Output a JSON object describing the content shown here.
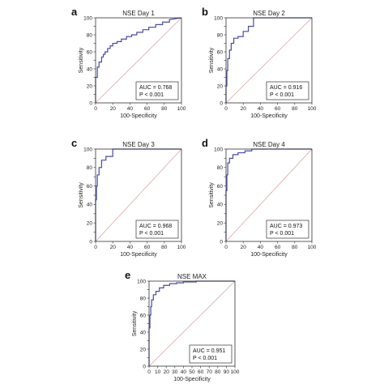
{
  "chart_data": [
    {
      "panel": "a",
      "type": "line",
      "title": "NSE Day 1",
      "xlabel": "100-Specificity",
      "ylabel": "Sensitivity",
      "xlim": [
        0,
        100
      ],
      "ylim": [
        0,
        100
      ],
      "xticks": [
        "0",
        "20",
        "40",
        "60",
        "80",
        "100"
      ],
      "yticks": [
        "0",
        "10",
        "20",
        "30",
        "40",
        "50",
        "60",
        "70",
        "80",
        "90",
        "100"
      ],
      "auc_text": "AUC = 0.768",
      "p_text": "P < 0.001",
      "roc_color": "#4a4aa8",
      "ref_color": "#d8a8a8",
      "x": [
        0,
        0,
        2,
        2,
        4,
        4,
        7,
        7,
        9,
        9,
        11,
        11,
        14,
        14,
        17,
        17,
        20,
        20,
        25,
        25,
        30,
        30,
        36,
        36,
        42,
        42,
        48,
        48,
        55,
        55,
        62,
        62,
        70,
        70,
        78,
        78,
        86,
        86,
        100
      ],
      "y": [
        0,
        30,
        30,
        42,
        42,
        48,
        48,
        54,
        54,
        57,
        57,
        60,
        60,
        64,
        64,
        67,
        67,
        70,
        70,
        72,
        72,
        75,
        75,
        78,
        78,
        80,
        80,
        83,
        83,
        86,
        86,
        89,
        89,
        92,
        92,
        95,
        95,
        98,
        100
      ]
    },
    {
      "panel": "b",
      "type": "line",
      "title": "NSE Day 2",
      "xlabel": "100-Specificity",
      "ylabel": "Sensitivity",
      "xlim": [
        0,
        100
      ],
      "ylim": [
        0,
        100
      ],
      "xticks": [
        "0",
        "20",
        "40",
        "60",
        "80",
        "100"
      ],
      "yticks": [
        "0",
        "10",
        "20",
        "30",
        "40",
        "50",
        "60",
        "70",
        "80",
        "90",
        "100"
      ],
      "auc_text": "AUC = 0.916",
      "p_text": "P < 0.001",
      "roc_color": "#4a4aa8",
      "ref_color": "#d8a8a8",
      "x": [
        0,
        0,
        1,
        1,
        2,
        2,
        4,
        4,
        6,
        6,
        9,
        9,
        14,
        14,
        20,
        20,
        26,
        26,
        32,
        32,
        100
      ],
      "y": [
        0,
        20,
        20,
        38,
        38,
        52,
        52,
        62,
        62,
        70,
        70,
        76,
        76,
        78,
        78,
        84,
        84,
        90,
        90,
        100,
        100
      ]
    },
    {
      "panel": "c",
      "type": "line",
      "title": "NSE Day 3",
      "xlabel": "100-Specificity",
      "ylabel": "Sensitivity",
      "xlim": [
        0,
        100
      ],
      "ylim": [
        0,
        100
      ],
      "xticks": [
        "0",
        "20",
        "40",
        "60",
        "80",
        "100"
      ],
      "yticks": [
        "0",
        "10",
        "20",
        "30",
        "40",
        "50",
        "60",
        "70",
        "80",
        "90",
        "100"
      ],
      "auc_text": "AUC = 0.968",
      "p_text": "P < 0.001",
      "roc_color": "#4a4aa8",
      "ref_color": "#d8a8a8",
      "x": [
        0,
        0,
        1,
        1,
        2,
        2,
        4,
        4,
        7,
        7,
        12,
        12,
        20,
        20,
        100
      ],
      "y": [
        0,
        45,
        45,
        60,
        60,
        72,
        72,
        80,
        80,
        88,
        88,
        92,
        92,
        100,
        100
      ]
    },
    {
      "panel": "d",
      "type": "line",
      "title": "NSE Day 4",
      "xlabel": "100-Specificity",
      "ylabel": "Sensitivity",
      "xlim": [
        0,
        100
      ],
      "ylim": [
        0,
        100
      ],
      "xticks": [
        "0",
        "20",
        "40",
        "60",
        "80",
        "100"
      ],
      "yticks": [
        "0",
        "10",
        "20",
        "30",
        "40",
        "50",
        "60",
        "70",
        "80",
        "90",
        "100"
      ],
      "auc_text": "AUC = 0.973",
      "p_text": "P < 0.001",
      "roc_color": "#4a4aa8",
      "ref_color": "#d8a8a8",
      "x": [
        0,
        0,
        1,
        1,
        2,
        2,
        4,
        4,
        8,
        8,
        14,
        14,
        22,
        22,
        30,
        30,
        100
      ],
      "y": [
        0,
        55,
        55,
        72,
        72,
        85,
        85,
        90,
        90,
        94,
        94,
        96,
        96,
        98,
        98,
        100,
        100
      ]
    },
    {
      "panel": "e",
      "type": "line",
      "title": "NSE MAX",
      "xlabel": "100-Specificity",
      "ylabel": "Sensitivity",
      "xlim": [
        0,
        100
      ],
      "ylim": [
        0,
        100
      ],
      "xticks": [
        "0",
        "10",
        "20",
        "30",
        "40",
        "50",
        "60",
        "70",
        "80",
        "90",
        "100"
      ],
      "yticks": [
        "0",
        "10",
        "20",
        "30",
        "40",
        "50",
        "60",
        "70",
        "80",
        "90",
        "100"
      ],
      "auc_text": "AUC = 0.951",
      "p_text": "P < 0.001",
      "roc_color": "#4a4aa8",
      "ref_color": "#d8a8a8",
      "x": [
        0,
        0,
        1,
        1,
        2,
        2,
        3,
        3,
        5,
        5,
        8,
        8,
        12,
        12,
        17,
        17,
        24,
        24,
        32,
        32,
        40,
        40,
        55,
        55,
        100
      ],
      "y": [
        0,
        45,
        45,
        60,
        60,
        70,
        70,
        78,
        78,
        84,
        84,
        88,
        88,
        92,
        92,
        95,
        95,
        97,
        97,
        98,
        98,
        99,
        99,
        100,
        100
      ]
    }
  ]
}
